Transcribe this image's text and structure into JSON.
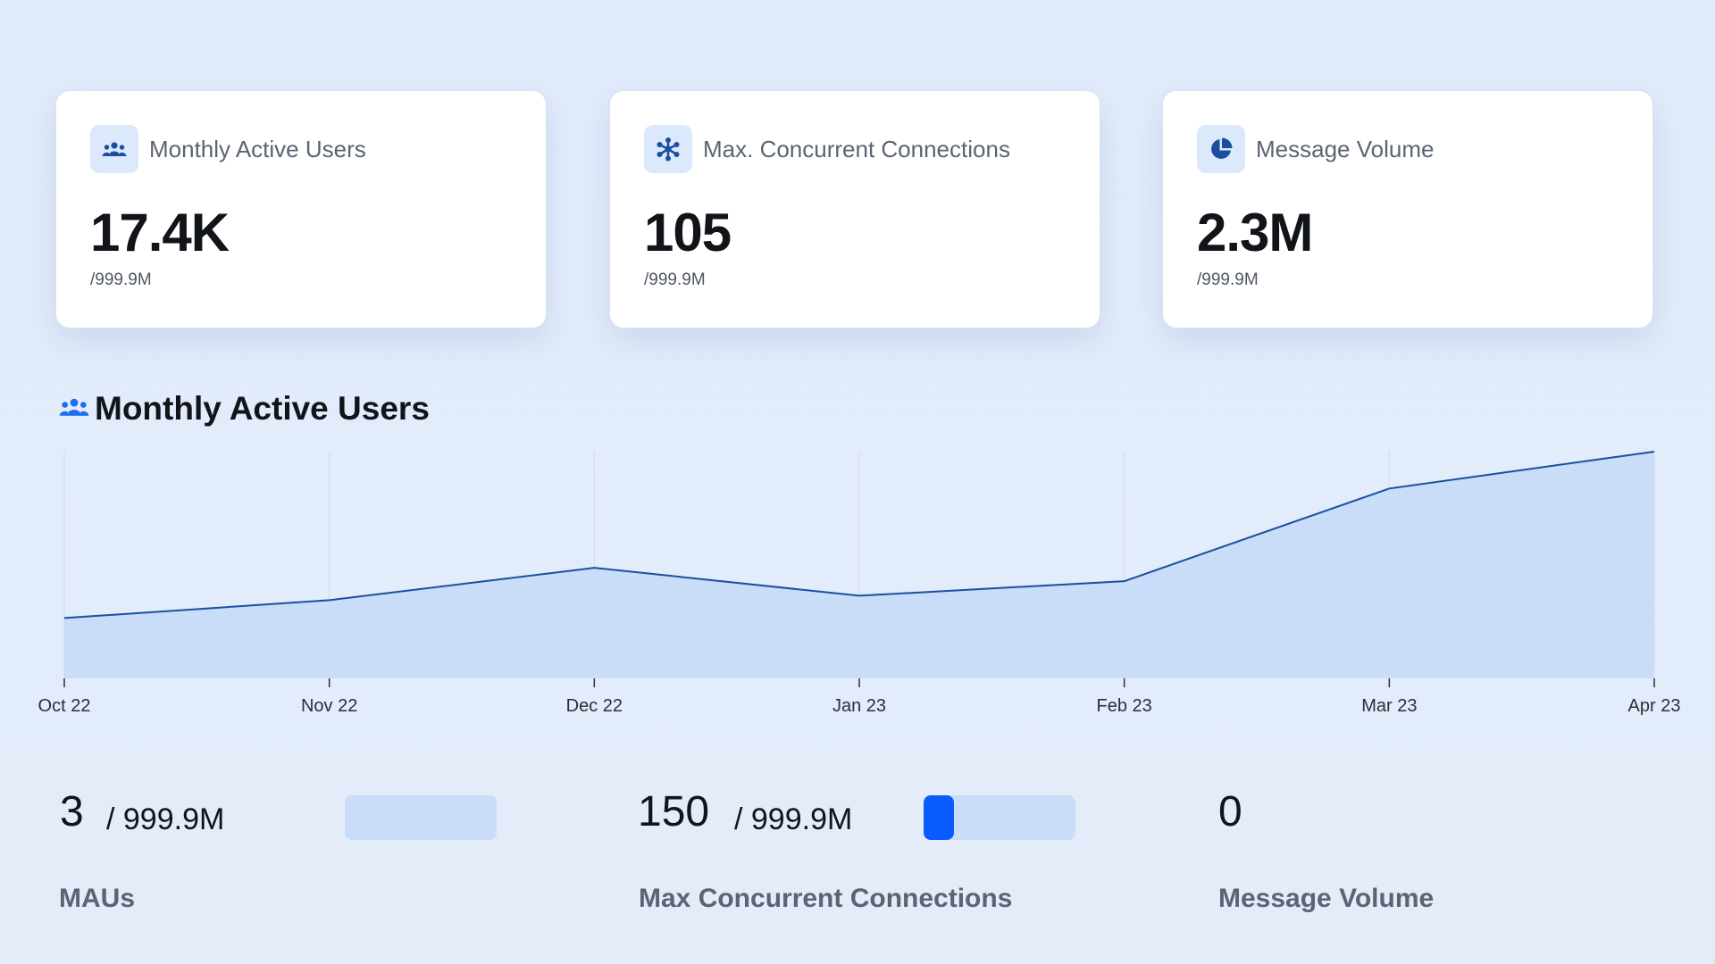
{
  "cards": [
    {
      "icon": "users-icon",
      "title": "Monthly Active Users",
      "value": "17.4K",
      "limit": "/999.9M"
    },
    {
      "icon": "connections-icon",
      "title": "Max. Concurrent Connections",
      "value": "105",
      "limit": "/999.9M"
    },
    {
      "icon": "pie-chart-icon",
      "title": "Message Volume",
      "value": "2.3M",
      "limit": "/999.9M"
    }
  ],
  "section": {
    "title": "Monthly Active Users",
    "icon": "users-icon"
  },
  "chart_data": {
    "type": "area",
    "categories": [
      "Oct 22",
      "Nov 22",
      "Dec 22",
      "Jan 23",
      "Feb 23",
      "Mar 23",
      "Apr 23"
    ],
    "values": [
      5.4,
      7.0,
      9.9,
      7.4,
      8.7,
      17.0,
      20.3
    ],
    "title": "",
    "xlabel": "",
    "ylabel": "",
    "ylim": [
      0,
      20.3
    ],
    "grid": "vertical",
    "colors": {
      "line": "#1a4fa0",
      "fill": "#c9dcf8",
      "grid": "#d3dbe6"
    }
  },
  "stats": [
    {
      "value": "3",
      "of": "/ 999.9M",
      "label": "MAUs",
      "usage_fraction": 0.0
    },
    {
      "value": "150",
      "of": "/ 999.9M",
      "label": "Max Concurrent Connections",
      "usage_fraction": 0.16
    },
    {
      "value": "0",
      "label": "Message Volume"
    }
  ],
  "colors": {
    "accent": "#0b5cff",
    "icon_blue": "#1a4fa0",
    "track": "#c9dcf8"
  }
}
